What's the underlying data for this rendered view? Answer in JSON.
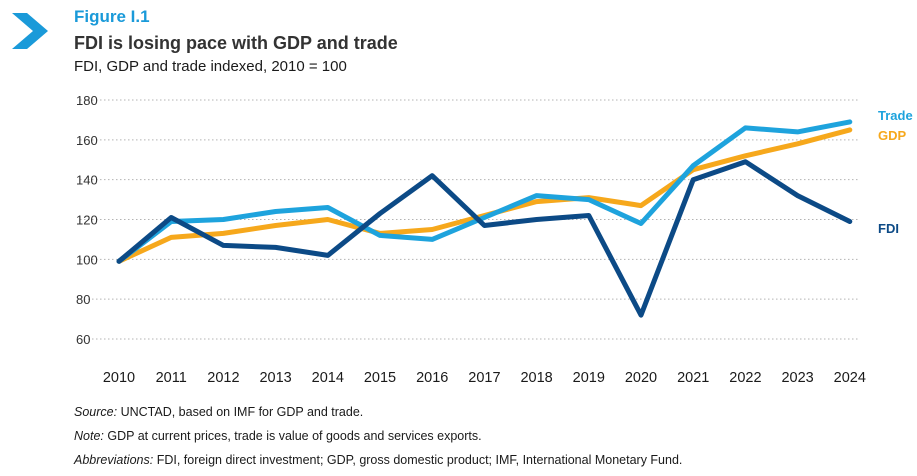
{
  "header": {
    "figure_label": "Figure I.1",
    "title": "FDI is losing pace with GDP and trade",
    "subtitle": "FDI, GDP and trade indexed, 2010 = 100"
  },
  "chart_data": {
    "type": "line",
    "title": "FDI is losing pace with GDP and trade",
    "subtitle": "FDI, GDP and trade indexed, 2010 = 100",
    "xlabel": "",
    "ylabel": "",
    "x": [
      "2010",
      "2011",
      "2012",
      "2013",
      "2014",
      "2015",
      "2016",
      "2017",
      "2018",
      "2019",
      "2020",
      "2021",
      "2022",
      "2023",
      "2024"
    ],
    "ylim": [
      60,
      180
    ],
    "yticks": [
      60,
      80,
      100,
      120,
      140,
      160,
      180
    ],
    "grid": true,
    "legend": "inline labels at line ends, right",
    "series": [
      {
        "name": "GDP",
        "color": "#f6a81c",
        "values": [
          99,
          111,
          113,
          117,
          120,
          113,
          115,
          122,
          129,
          131,
          127,
          145,
          152,
          158,
          165
        ]
      },
      {
        "name": "Trade",
        "color": "#1ea3dd",
        "values": [
          99,
          119,
          120,
          124,
          126,
          112,
          110,
          121,
          132,
          130,
          118,
          147,
          166,
          164,
          169
        ]
      },
      {
        "name": "FDI",
        "color": "#0c4a86",
        "values": [
          99,
          121,
          107,
          106,
          102,
          123,
          142,
          117,
          120,
          122,
          72,
          140,
          149,
          132,
          119
        ]
      }
    ]
  },
  "notes": [
    {
      "key": "Source:",
      "text": " UNCTAD, based on IMF for GDP and trade."
    },
    {
      "key": "Note:",
      "text": " GDP at current prices, trade is value of goods and services exports."
    },
    {
      "key": "Abbreviations:",
      "text": " FDI, foreign direct investment; GDP, gross domestic product; IMF, International Monetary Fund."
    }
  ]
}
